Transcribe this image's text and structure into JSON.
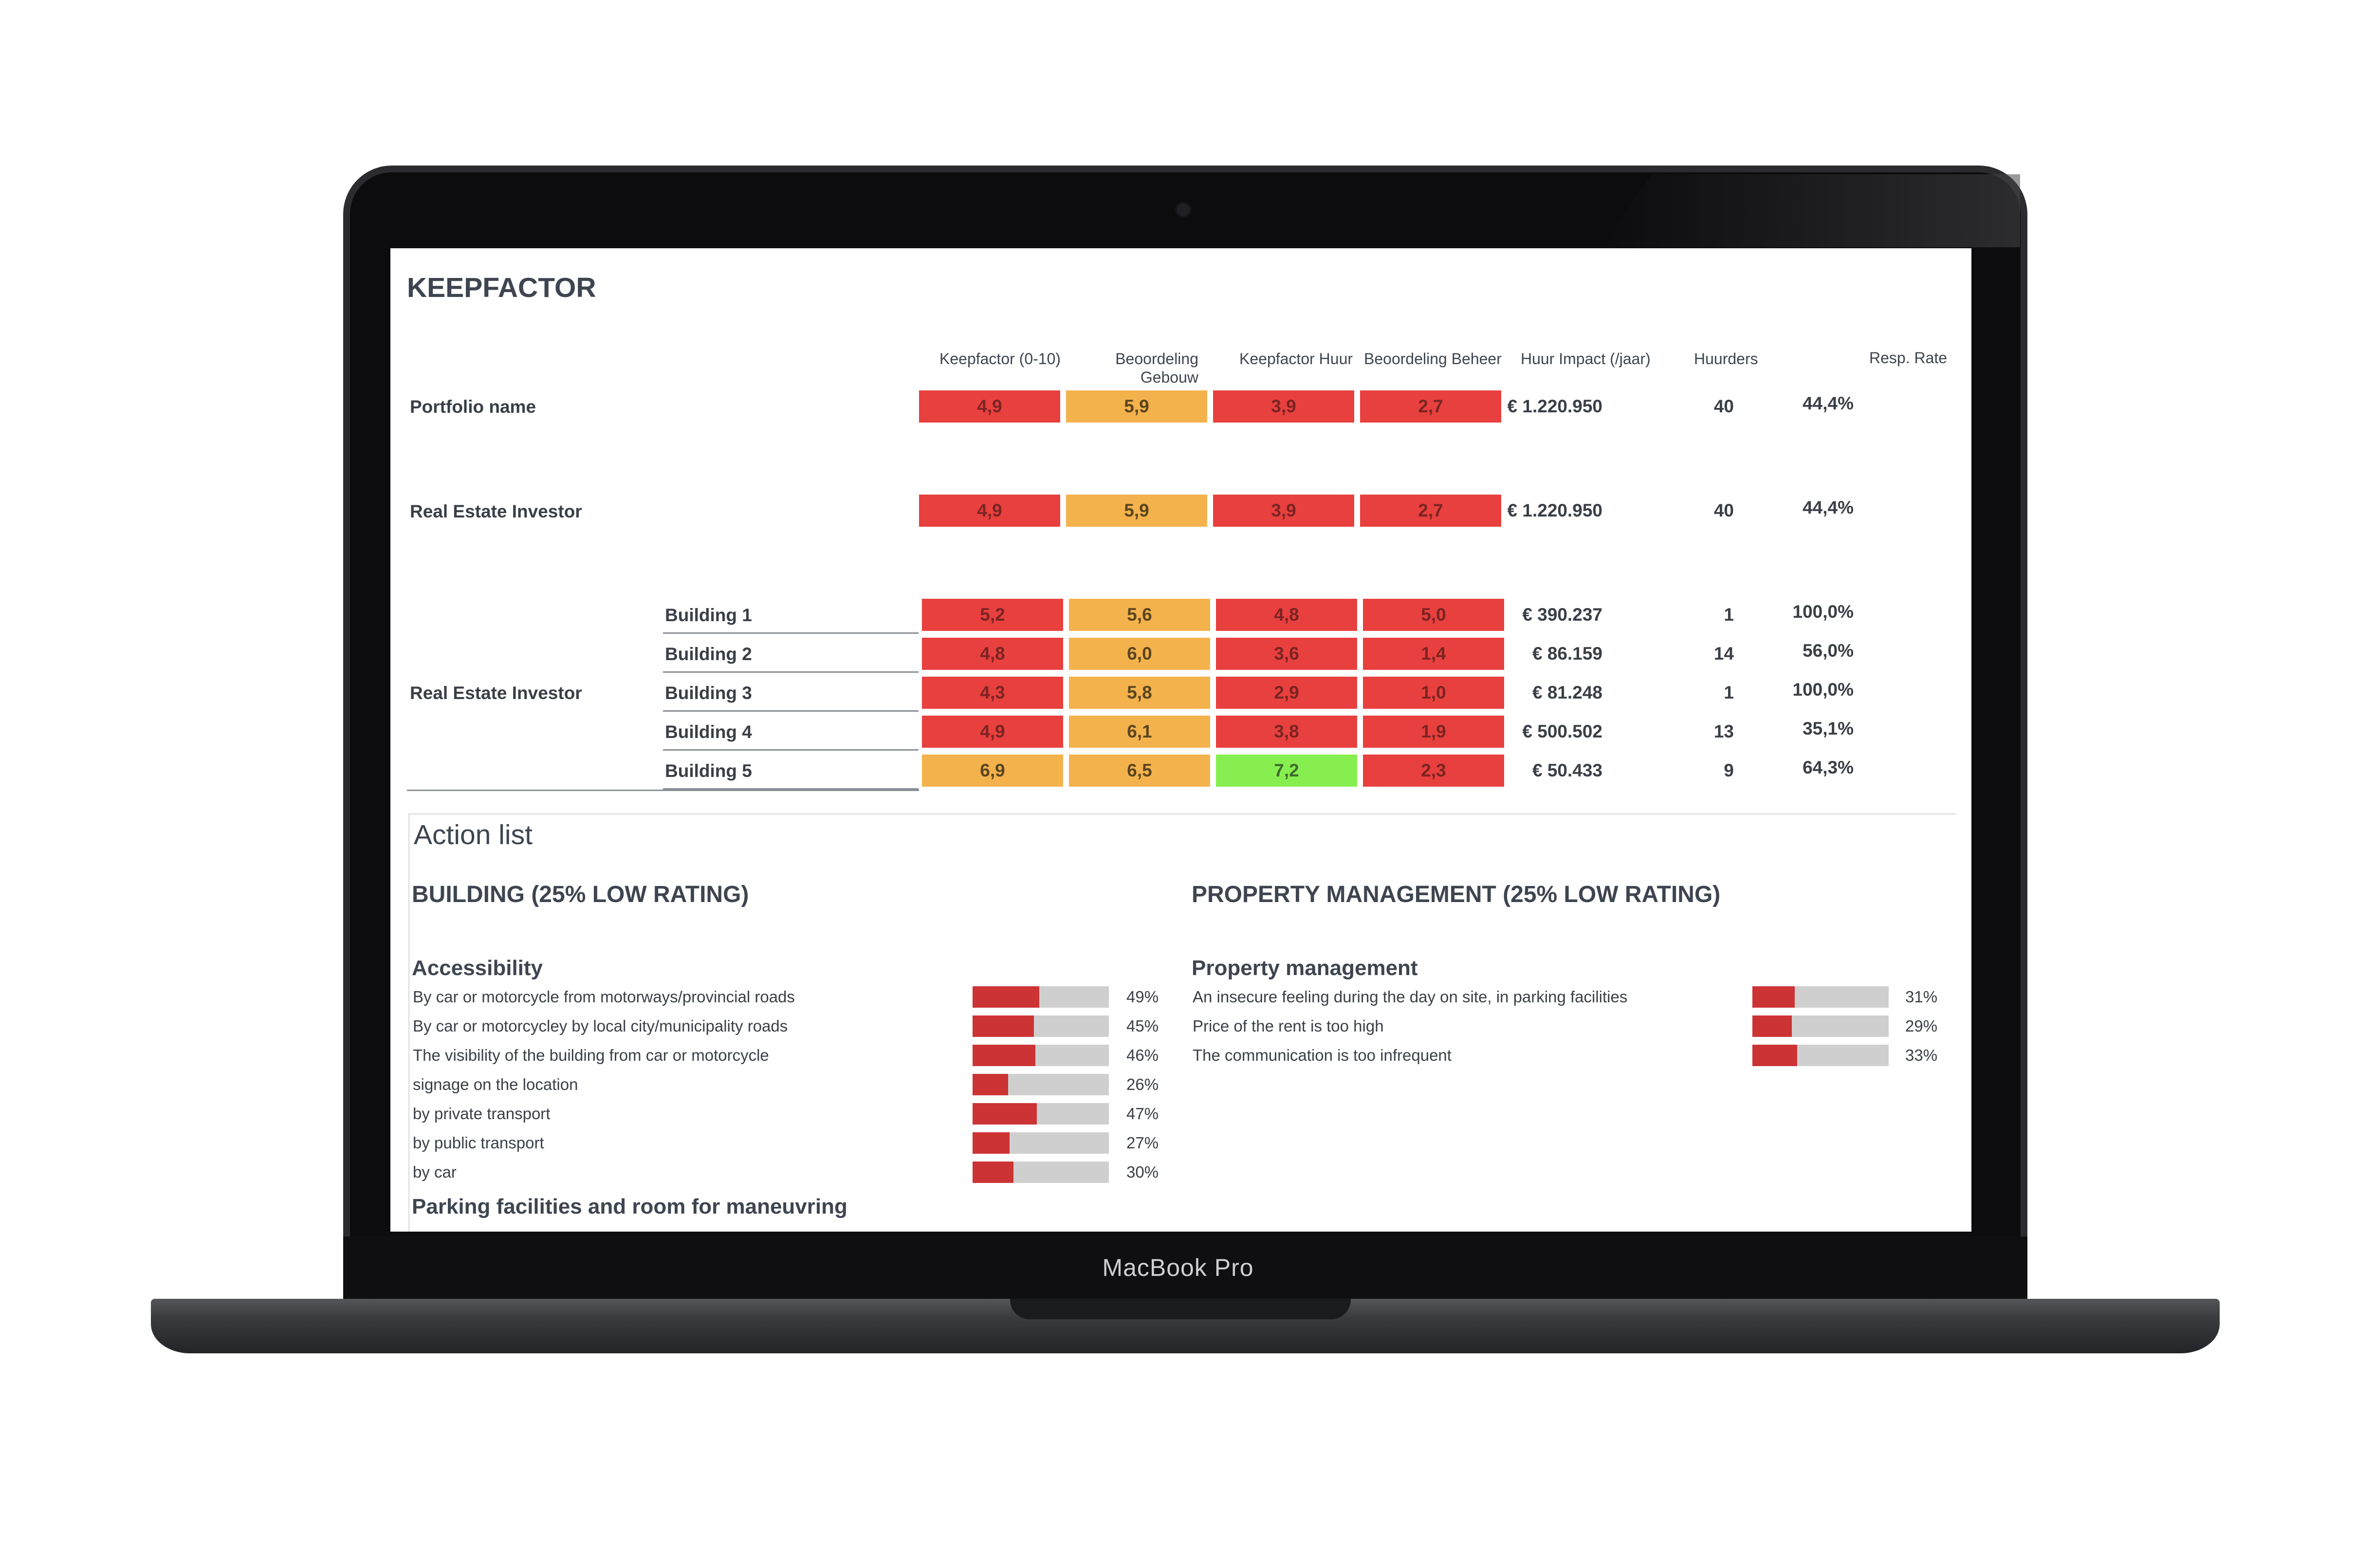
{
  "device": {
    "brand": "MacBook Pro"
  },
  "report": {
    "title": "KEEPFACTOR",
    "columns": [
      "Keepfactor (0-10)",
      "Beoordeling\nGebouw",
      "Keepfactor Huur",
      "Beoordeling Beheer",
      "Huur Impact (/jaar)",
      "Huurders",
      "Resp. Rate"
    ],
    "rows": [
      {
        "label": "Portfolio name",
        "scores": [
          "4,9",
          "5,9",
          "3,9",
          "2,7"
        ],
        "colors": [
          "red",
          "orange",
          "red",
          "red"
        ],
        "impact": "€ 1.220.950",
        "tenants": "40",
        "rate": "44,4%"
      },
      {
        "label": "Real Estate Investor",
        "scores": [
          "4,9",
          "5,9",
          "3,9",
          "2,7"
        ],
        "colors": [
          "red",
          "orange",
          "red",
          "red"
        ],
        "impact": "€ 1.220.950",
        "tenants": "40",
        "rate": "44,4%"
      }
    ],
    "group_label": "Real Estate Investor",
    "buildings": [
      {
        "label": "Building 1",
        "scores": [
          "5,2",
          "5,6",
          "4,8",
          "5,0"
        ],
        "colors": [
          "red",
          "orange",
          "red",
          "red"
        ],
        "impact": "€ 390.237",
        "tenants": "1",
        "rate": "100,0%"
      },
      {
        "label": "Building 2",
        "scores": [
          "4,8",
          "6,0",
          "3,6",
          "1,4"
        ],
        "colors": [
          "red",
          "orange",
          "red",
          "red"
        ],
        "impact": "€ 86.159",
        "tenants": "14",
        "rate": "56,0%"
      },
      {
        "label": "Building 3",
        "scores": [
          "4,3",
          "5,8",
          "2,9",
          "1,0"
        ],
        "colors": [
          "red",
          "orange",
          "red",
          "red"
        ],
        "impact": "€ 81.248",
        "tenants": "1",
        "rate": "100,0%"
      },
      {
        "label": "Building 4",
        "scores": [
          "4,9",
          "6,1",
          "3,8",
          "1,9"
        ],
        "colors": [
          "red",
          "orange",
          "red",
          "red"
        ],
        "impact": "€ 500.502",
        "tenants": "13",
        "rate": "35,1%"
      },
      {
        "label": "Building 5",
        "scores": [
          "6,9",
          "6,5",
          "7,2",
          "2,3"
        ],
        "colors": [
          "orange",
          "orange",
          "green",
          "red"
        ],
        "impact": "€ 50.433",
        "tenants": "9",
        "rate": "64,3%"
      }
    ]
  },
  "actions": {
    "title": "Action list",
    "building": {
      "heading": "BUILDING (25% LOW RATING)",
      "groups": [
        {
          "name": "Accessibility",
          "items": [
            {
              "label": "By car or motorcycle from motorways/provincial roads",
              "pct": "49%",
              "value": 0.49
            },
            {
              "label": "By car or motorcycley by local city/municipality roads",
              "pct": "45%",
              "value": 0.45
            },
            {
              "label": "The visibility of the building from car or motorcycle",
              "pct": "46%",
              "value": 0.46
            },
            {
              "label": "signage on the location",
              "pct": "26%",
              "value": 0.26
            },
            {
              "label": "by private transport",
              "pct": "47%",
              "value": 0.47
            },
            {
              "label": "by public transport",
              "pct": "27%",
              "value": 0.27
            },
            {
              "label": "by car",
              "pct": "30%",
              "value": 0.3
            }
          ]
        },
        {
          "name": "Parking facilities and room for maneuvring",
          "items": []
        }
      ]
    },
    "management": {
      "heading": "PROPERTY MANAGEMENT (25% LOW RATING)",
      "groups": [
        {
          "name": "Property management",
          "items": [
            {
              "label": "An insecure feeling during the day on site, in parking facilities",
              "pct": "31%",
              "value": 0.31
            },
            {
              "label": "Price of the rent is too high",
              "pct": "29%",
              "value": 0.29
            },
            {
              "label": "The communication is too infrequent",
              "pct": "33%",
              "value": 0.33
            }
          ]
        }
      ]
    }
  },
  "colors": {
    "red": "#e8403e",
    "orange": "#f4b24c",
    "green": "#86ef4f",
    "bar_fill": "#cc3335",
    "bar_track": "#cfcfcf"
  }
}
